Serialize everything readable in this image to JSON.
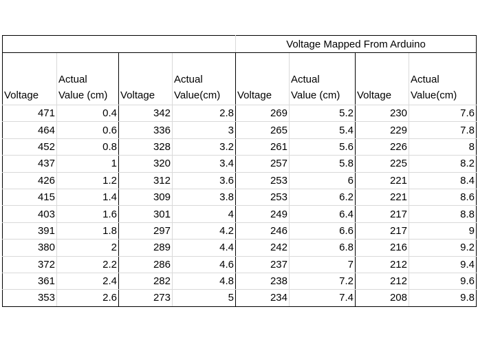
{
  "title": "Voltage Mapped From Arduino",
  "headers": [
    {
      "line1": "",
      "line2": "Voltage"
    },
    {
      "line1": "Actual",
      "line2": "Value (cm)"
    },
    {
      "line1": "",
      "line2": "Voltage"
    },
    {
      "line1": "Actual",
      "line2": "Value(cm)"
    },
    {
      "line1": "",
      "line2": "Voltage"
    },
    {
      "line1": "Actual",
      "line2": "Value (cm)"
    },
    {
      "line1": "",
      "line2": "Voltage"
    },
    {
      "line1": "Actual",
      "line2": "Value(cm)"
    }
  ],
  "rows": [
    [
      "471",
      "0.4",
      "342",
      "2.8",
      "269",
      "5.2",
      "230",
      "7.6"
    ],
    [
      "464",
      "0.6",
      "336",
      "3",
      "265",
      "5.4",
      "229",
      "7.8"
    ],
    [
      "452",
      "0.8",
      "328",
      "3.2",
      "261",
      "5.6",
      "226",
      "8"
    ],
    [
      "437",
      "1",
      "320",
      "3.4",
      "257",
      "5.8",
      "225",
      "8.2"
    ],
    [
      "426",
      "1.2",
      "312",
      "3.6",
      "253",
      "6",
      "221",
      "8.4"
    ],
    [
      "415",
      "1.4",
      "309",
      "3.8",
      "253",
      "6.2",
      "221",
      "8.6"
    ],
    [
      "403",
      "1.6",
      "301",
      "4",
      "249",
      "6.4",
      "217",
      "8.8"
    ],
    [
      "391",
      "1.8",
      "297",
      "4.2",
      "246",
      "6.6",
      "217",
      "9"
    ],
    [
      "380",
      "2",
      "289",
      "4.4",
      "242",
      "6.8",
      "216",
      "9.2"
    ],
    [
      "372",
      "2.2",
      "286",
      "4.6",
      "237",
      "7",
      "212",
      "9.4"
    ],
    [
      "361",
      "2.4",
      "282",
      "4.8",
      "238",
      "7.2",
      "212",
      "9.6"
    ],
    [
      "353",
      "2.6",
      "273",
      "5",
      "234",
      "7.4",
      "208",
      "9.8"
    ]
  ]
}
